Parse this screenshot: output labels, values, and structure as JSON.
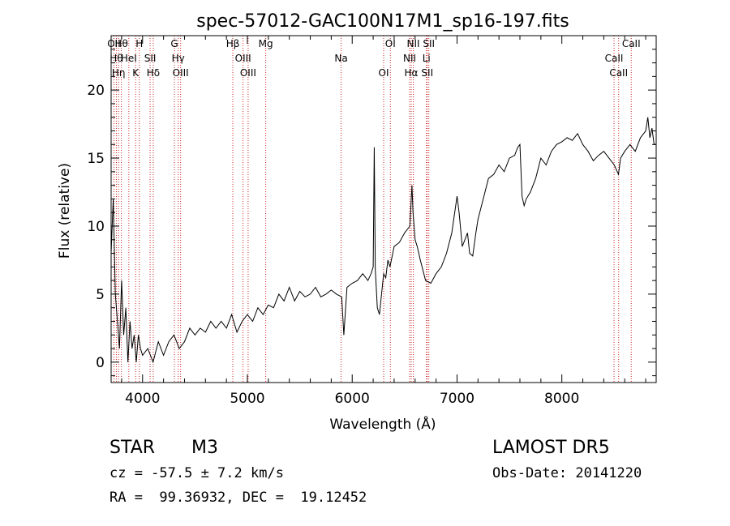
{
  "chart_data": {
    "type": "line",
    "title": "spec-57012-GAC100N17M1_sp16-197.fits",
    "xlabel": "Wavelength (Å)",
    "ylabel": "Flux (relative)",
    "xlim": [
      3700,
      8900
    ],
    "ylim": [
      -1.5,
      24
    ],
    "xticks": [
      4000,
      5000,
      6000,
      7000,
      8000
    ],
    "yticks": [
      0,
      5,
      10,
      15,
      20
    ],
    "grid": false,
    "series": [
      {
        "x": [
          3700,
          3720,
          3740,
          3760,
          3780,
          3800,
          3820,
          3840,
          3860,
          3880,
          3900,
          3920,
          3940,
          3960,
          3980,
          4000,
          4050,
          4100,
          4150,
          4200,
          4250,
          4300,
          4350,
          4400,
          4450,
          4500,
          4550,
          4600,
          4650,
          4700,
          4750,
          4800,
          4850,
          4900,
          4950,
          5000,
          5050,
          5100,
          5150,
          5200,
          5250,
          5300,
          5350,
          5400,
          5450,
          5500,
          5550,
          5600,
          5650,
          5700,
          5750,
          5800,
          5850,
          5900,
          5920,
          5950,
          6000,
          6050,
          6100,
          6150,
          6180,
          6200,
          6210,
          6220,
          6240,
          6260,
          6280,
          6300,
          6320,
          6340,
          6360,
          6400,
          6450,
          6500,
          6550,
          6570,
          6580,
          6600,
          6620,
          6650,
          6700,
          6750,
          6800,
          6850,
          6900,
          6950,
          7000,
          7020,
          7050,
          7100,
          7120,
          7150,
          7180,
          7200,
          7250,
          7300,
          7350,
          7400,
          7450,
          7500,
          7550,
          7580,
          7600,
          7620,
          7640,
          7660,
          7700,
          7750,
          7800,
          7850,
          7900,
          7950,
          8000,
          8050,
          8100,
          8150,
          8200,
          8250,
          8300,
          8350,
          8400,
          8450,
          8500,
          8540,
          8560,
          8600,
          8650,
          8700,
          8750,
          8800,
          8820,
          8840,
          8860,
          8880,
          8900
        ],
        "y": [
          8,
          12,
          5,
          3,
          1,
          6,
          2,
          4,
          0,
          3,
          1,
          2,
          0,
          2,
          1,
          0.5,
          1,
          0,
          1.5,
          0.5,
          1.5,
          2,
          1,
          1.5,
          2.5,
          2,
          2.5,
          2.2,
          3,
          2.5,
          3,
          2.5,
          3.5,
          2.2,
          3,
          3.5,
          3,
          4,
          3.5,
          4.2,
          4,
          5,
          4.5,
          5.5,
          4.5,
          5.2,
          4.8,
          5,
          5.5,
          4.8,
          5,
          5.3,
          5,
          4.8,
          2,
          5.5,
          5.8,
          6,
          6.5,
          6,
          6.5,
          7,
          15.8,
          6.8,
          4,
          3.5,
          5,
          6.5,
          6.2,
          7.5,
          7,
          8.5,
          8.8,
          9.5,
          10,
          13,
          11,
          9,
          8.5,
          7.5,
          6,
          5.8,
          6.5,
          7,
          8,
          9.5,
          12.2,
          11,
          8.5,
          9.5,
          8,
          7.8,
          9.5,
          10.5,
          12,
          13.5,
          13.8,
          14.5,
          14,
          15,
          15.2,
          15.8,
          16,
          12.2,
          11.5,
          12,
          12.5,
          13.5,
          15,
          14.5,
          15.5,
          16,
          16.2,
          16.5,
          16.3,
          16.8,
          16,
          15.5,
          14.8,
          15.2,
          15.5,
          15,
          14.5,
          13.8,
          15,
          15.5,
          16,
          15.5,
          16.5,
          17,
          18,
          16.5,
          17.2,
          16,
          16
        ]
      }
    ],
    "lines": [
      {
        "wave": 3727,
        "label": "OII"
      },
      {
        "wave": 3750,
        "label": "Hθ"
      },
      {
        "wave": 3771,
        "label": "Hη"
      },
      {
        "wave": 3798,
        "label": "Hθ"
      },
      {
        "wave": 3869,
        "label": "HeI"
      },
      {
        "wave": 3934,
        "label": "K"
      },
      {
        "wave": 3969,
        "label": "H"
      },
      {
        "wave": 4072,
        "label": "SII"
      },
      {
        "wave": 4102,
        "label": "Hδ"
      },
      {
        "wave": 4304,
        "label": "G"
      },
      {
        "wave": 4340,
        "label": "Hγ"
      },
      {
        "wave": 4363,
        "label": "OIII"
      },
      {
        "wave": 4861,
        "label": "Hβ"
      },
      {
        "wave": 4959,
        "label": "OIII"
      },
      {
        "wave": 5007,
        "label": "OIII"
      },
      {
        "wave": 5175,
        "label": "Mg"
      },
      {
        "wave": 5894,
        "label": "Na"
      },
      {
        "wave": 6300,
        "label": "OI"
      },
      {
        "wave": 6364,
        "label": "OI"
      },
      {
        "wave": 6548,
        "label": "NII"
      },
      {
        "wave": 6563,
        "label": "Hα"
      },
      {
        "wave": 6583,
        "label": "NII"
      },
      {
        "wave": 6708,
        "label": "Li"
      },
      {
        "wave": 6716,
        "label": "SII"
      },
      {
        "wave": 6731,
        "label": "SII"
      },
      {
        "wave": 8498,
        "label": "CaII"
      },
      {
        "wave": 8542,
        "label": "CaII"
      },
      {
        "wave": 8662,
        "label": "CaII"
      }
    ]
  },
  "info": {
    "class_label": "STAR",
    "subclass_label": "M3",
    "survey_label": "LAMOST DR5",
    "cz_text": "cz = -57.5 ± 7.2 km/s",
    "obs_date_text": "Obs-Date: 20141220",
    "coords_text": "RA =  99.36932, DEC =  19.12452"
  }
}
